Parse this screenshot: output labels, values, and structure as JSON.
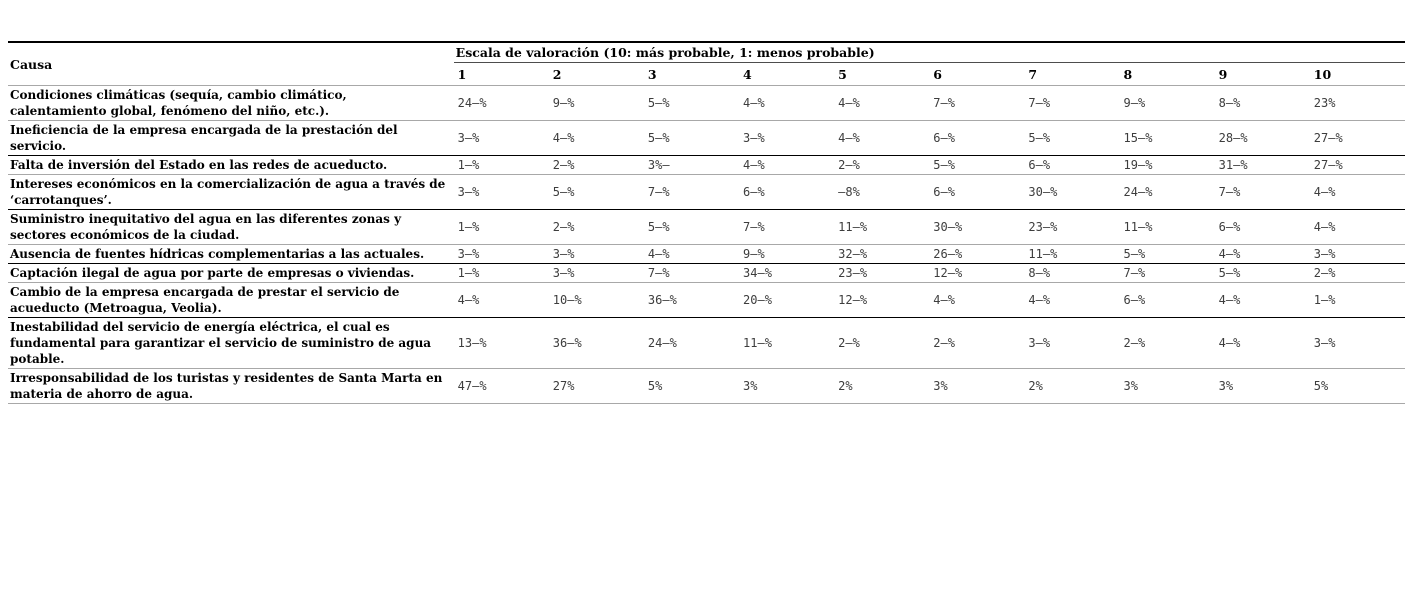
{
  "colors": {
    "border_dark": "#000000",
    "border_light": "#a8a8a8",
    "value_text": "#3d3d3d"
  },
  "table": {
    "col_header": "Causa",
    "scale_header": "Escala de valoración (10: más probable, 1: menos probable)",
    "scale_columns": [
      "1",
      "2",
      "3",
      "4",
      "5",
      "6",
      "7",
      "8",
      "9",
      "10"
    ],
    "rows": [
      {
        "causa": "Condiciones climáticas (sequía, cambio climático, calentamiento global, fenómeno del niño, etc.).",
        "values": [
          "24–%",
          "9–%",
          "5–%",
          "4–%",
          "4–%",
          "7–%",
          "7–%",
          "9–%",
          "8–%",
          "23%"
        ]
      },
      {
        "causa": "Ineficiencia de la empresa encargada de la prestación del servicio.",
        "values": [
          "3–%",
          "4–%",
          "5–%",
          "3–%",
          "4–%",
          "6–%",
          "5–%",
          "15–%",
          "28–%",
          "27–%"
        ]
      },
      {
        "causa": "Falta de inversión del Estado en las redes de acueducto.",
        "values": [
          "1–%",
          "2–%",
          "3%–",
          "4–%",
          "2–%",
          "5–%",
          "6–%",
          "19–%",
          "31–%",
          "27–%"
        ]
      },
      {
        "causa": "Intereses económicos en la comercialización de agua a través de ‘carrotanques’.",
        "values": [
          "3–%",
          "5–%",
          "7–%",
          "6–%",
          "–8%",
          "6–%",
          "30–%",
          "24–%",
          "7–%",
          "4–%"
        ]
      },
      {
        "causa": "Suministro inequitativo del agua en las diferentes zonas y sectores económicos de la ciudad.",
        "values": [
          "1–%",
          "2–%",
          "5–%",
          "7–%",
          "11–%",
          "30–%",
          "23–%",
          "11–%",
          "6–%",
          "4–%"
        ]
      },
      {
        "causa": "Ausencia de fuentes hídricas complementarias a las actuales.",
        "values": [
          "3–%",
          "3–%",
          "4–%",
          "9–%",
          "32–%",
          "26–%",
          "11–%",
          "5–%",
          "4–%",
          "3–%"
        ]
      },
      {
        "causa": "Captación ilegal de agua por parte de empresas o viviendas.",
        "values": [
          "1–%",
          "3–%",
          "7–%",
          "34–%",
          "23–%",
          "12–%",
          "8–%",
          "7–%",
          "5–%",
          "2–%"
        ]
      },
      {
        "causa": "Cambio de la empresa encargada de prestar el servicio de acueducto (Metroagua, Veolia).",
        "values": [
          "4–%",
          "10–%",
          "36–%",
          "20–%",
          "12–%",
          "4–%",
          "4–%",
          "6–%",
          "4–%",
          "1–%"
        ]
      },
      {
        "causa": "Inestabilidad del servicio de energía eléctrica, el cual es fundamental para garantizar el servicio de suministro de agua potable.",
        "values": [
          "13–%",
          "36–%",
          "24–%",
          "11–%",
          "2–%",
          "2–%",
          "3–%",
          "2–%",
          "4–%",
          "3–%"
        ]
      },
      {
        "causa": "Irresponsabilidad de los turistas y residentes de Santa Marta en materia de ahorro de agua.",
        "values": [
          "47–%",
          "27%",
          "5%",
          "3%",
          "2%",
          "3%",
          "2%",
          "3%",
          "3%",
          "5%"
        ]
      }
    ]
  }
}
